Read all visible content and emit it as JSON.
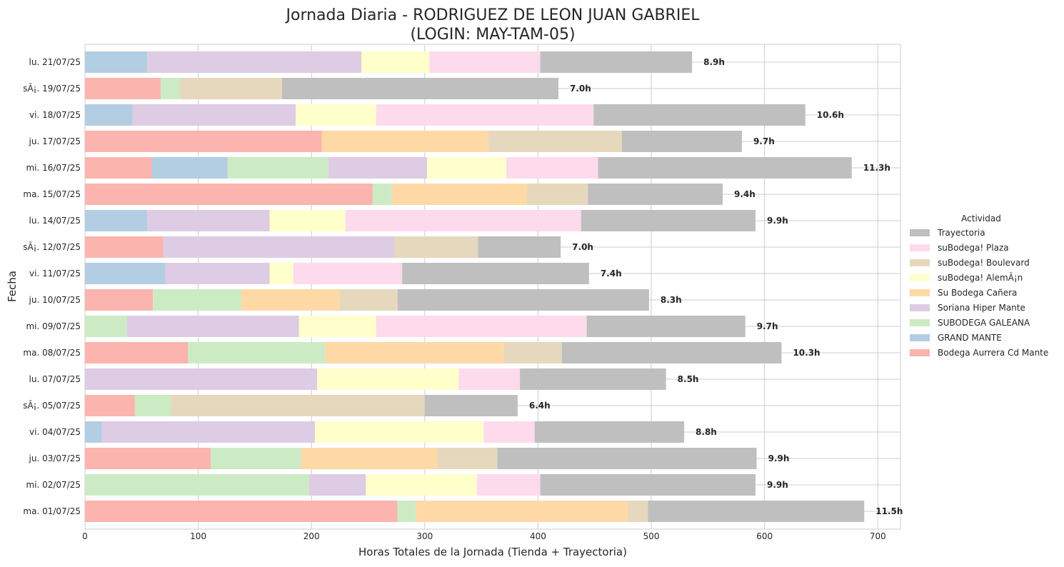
{
  "chart_data": {
    "type": "bar",
    "orientation": "horizontal",
    "stacked": true,
    "title_line1": "Jornada Diaria - RODRIGUEZ DE LEON JUAN GABRIEL",
    "title_line2": "(LOGIN: MAY-TAM-05)",
    "xlabel": "Horas Totales de la Jornada (Tienda + Trayectoria)",
    "ylabel": "Fecha",
    "xlim": [
      0,
      720
    ],
    "xticks": [
      0,
      100,
      200,
      300,
      400,
      500,
      600,
      700
    ],
    "grid": true,
    "legend_title": "Actividad",
    "legend_position": "right",
    "categories": [
      "lu. 21/07/25",
      "sÃ¡. 19/07/25",
      "vi. 18/07/25",
      "ju. 17/07/25",
      "mi. 16/07/25",
      "ma. 15/07/25",
      "lu. 14/07/25",
      "sÃ¡. 12/07/25",
      "vi. 11/07/25",
      "ju. 10/07/25",
      "mi. 09/07/25",
      "ma. 08/07/25",
      "lu. 07/07/25",
      "sÃ¡. 05/07/25",
      "vi. 04/07/25",
      "ju. 03/07/25",
      "mi. 02/07/25",
      "ma. 01/07/25"
    ],
    "series": [
      {
        "name": "Bodega Aurrera Cd Mante",
        "color": "#fbb4ae",
        "values": [
          0,
          67,
          0,
          209,
          59,
          254,
          0,
          69,
          0,
          60,
          0,
          91,
          0,
          44,
          0,
          111,
          0,
          276
        ]
      },
      {
        "name": "GRAND MANTE",
        "color": "#b3cde3",
        "values": [
          55,
          0,
          42,
          0,
          67,
          0,
          55,
          0,
          71,
          0,
          0,
          0,
          0,
          0,
          15,
          0,
          0,
          0
        ]
      },
      {
        "name": "SUBODEGA GALEANA",
        "color": "#ccebc5",
        "values": [
          0,
          17,
          0,
          0,
          89,
          17,
          0,
          0,
          0,
          78,
          37,
          121,
          0,
          32,
          0,
          80,
          198,
          16
        ]
      },
      {
        "name": "Soriana Hiper Mante",
        "color": "#decbe4",
        "values": [
          189,
          0,
          144,
          0,
          87,
          0,
          108,
          204,
          92,
          0,
          152,
          0,
          205,
          0,
          188,
          0,
          50,
          0
        ]
      },
      {
        "name": "Su Bodega Cañera",
        "color": "#fed9a6",
        "values": [
          0,
          0,
          0,
          147,
          0,
          119,
          0,
          0,
          0,
          87,
          0,
          158,
          0,
          0,
          0,
          120,
          0,
          187
        ]
      },
      {
        "name": "suBodega! AlemÃ¡n",
        "color": "#ffffcc",
        "values": [
          60,
          0,
          71,
          0,
          70,
          0,
          67,
          0,
          21,
          0,
          68,
          0,
          125,
          0,
          149,
          0,
          98,
          0
        ]
      },
      {
        "name": "suBodega! Boulevard",
        "color": "#e5d8bd",
        "values": [
          0,
          90,
          0,
          118,
          0,
          54,
          0,
          74,
          0,
          51,
          0,
          51,
          0,
          224,
          0,
          53,
          0,
          18
        ]
      },
      {
        "name": "suBodega! Plaza",
        "color": "#fddaec",
        "values": [
          98,
          0,
          192,
          0,
          81,
          0,
          208,
          0,
          96,
          0,
          186,
          0,
          54,
          0,
          45,
          0,
          56,
          0
        ]
      },
      {
        "name": "Trayectoria",
        "color": "#bfbfbf",
        "values": [
          134,
          244,
          187,
          106,
          224,
          119,
          154,
          73,
          165,
          222,
          140,
          194,
          129,
          82,
          132,
          229,
          190,
          191
        ]
      }
    ],
    "bar_labels": [
      "8.9h",
      "7.0h",
      "10.6h",
      "9.7h",
      "11.3h",
      "9.4h",
      "9.9h",
      "7.0h",
      "7.4h",
      "8.3h",
      "9.7h",
      "10.3h",
      "8.5h",
      "6.4h",
      "8.8h",
      "9.9h",
      "9.9h",
      "11.5h"
    ],
    "legend_order": [
      "Trayectoria",
      "suBodega! Plaza",
      "suBodega! Boulevard",
      "suBodega! AlemÃ¡n",
      "Su Bodega Cañera",
      "Soriana Hiper Mante",
      "SUBODEGA GALEANA",
      "GRAND MANTE",
      "Bodega Aurrera Cd Mante"
    ]
  }
}
